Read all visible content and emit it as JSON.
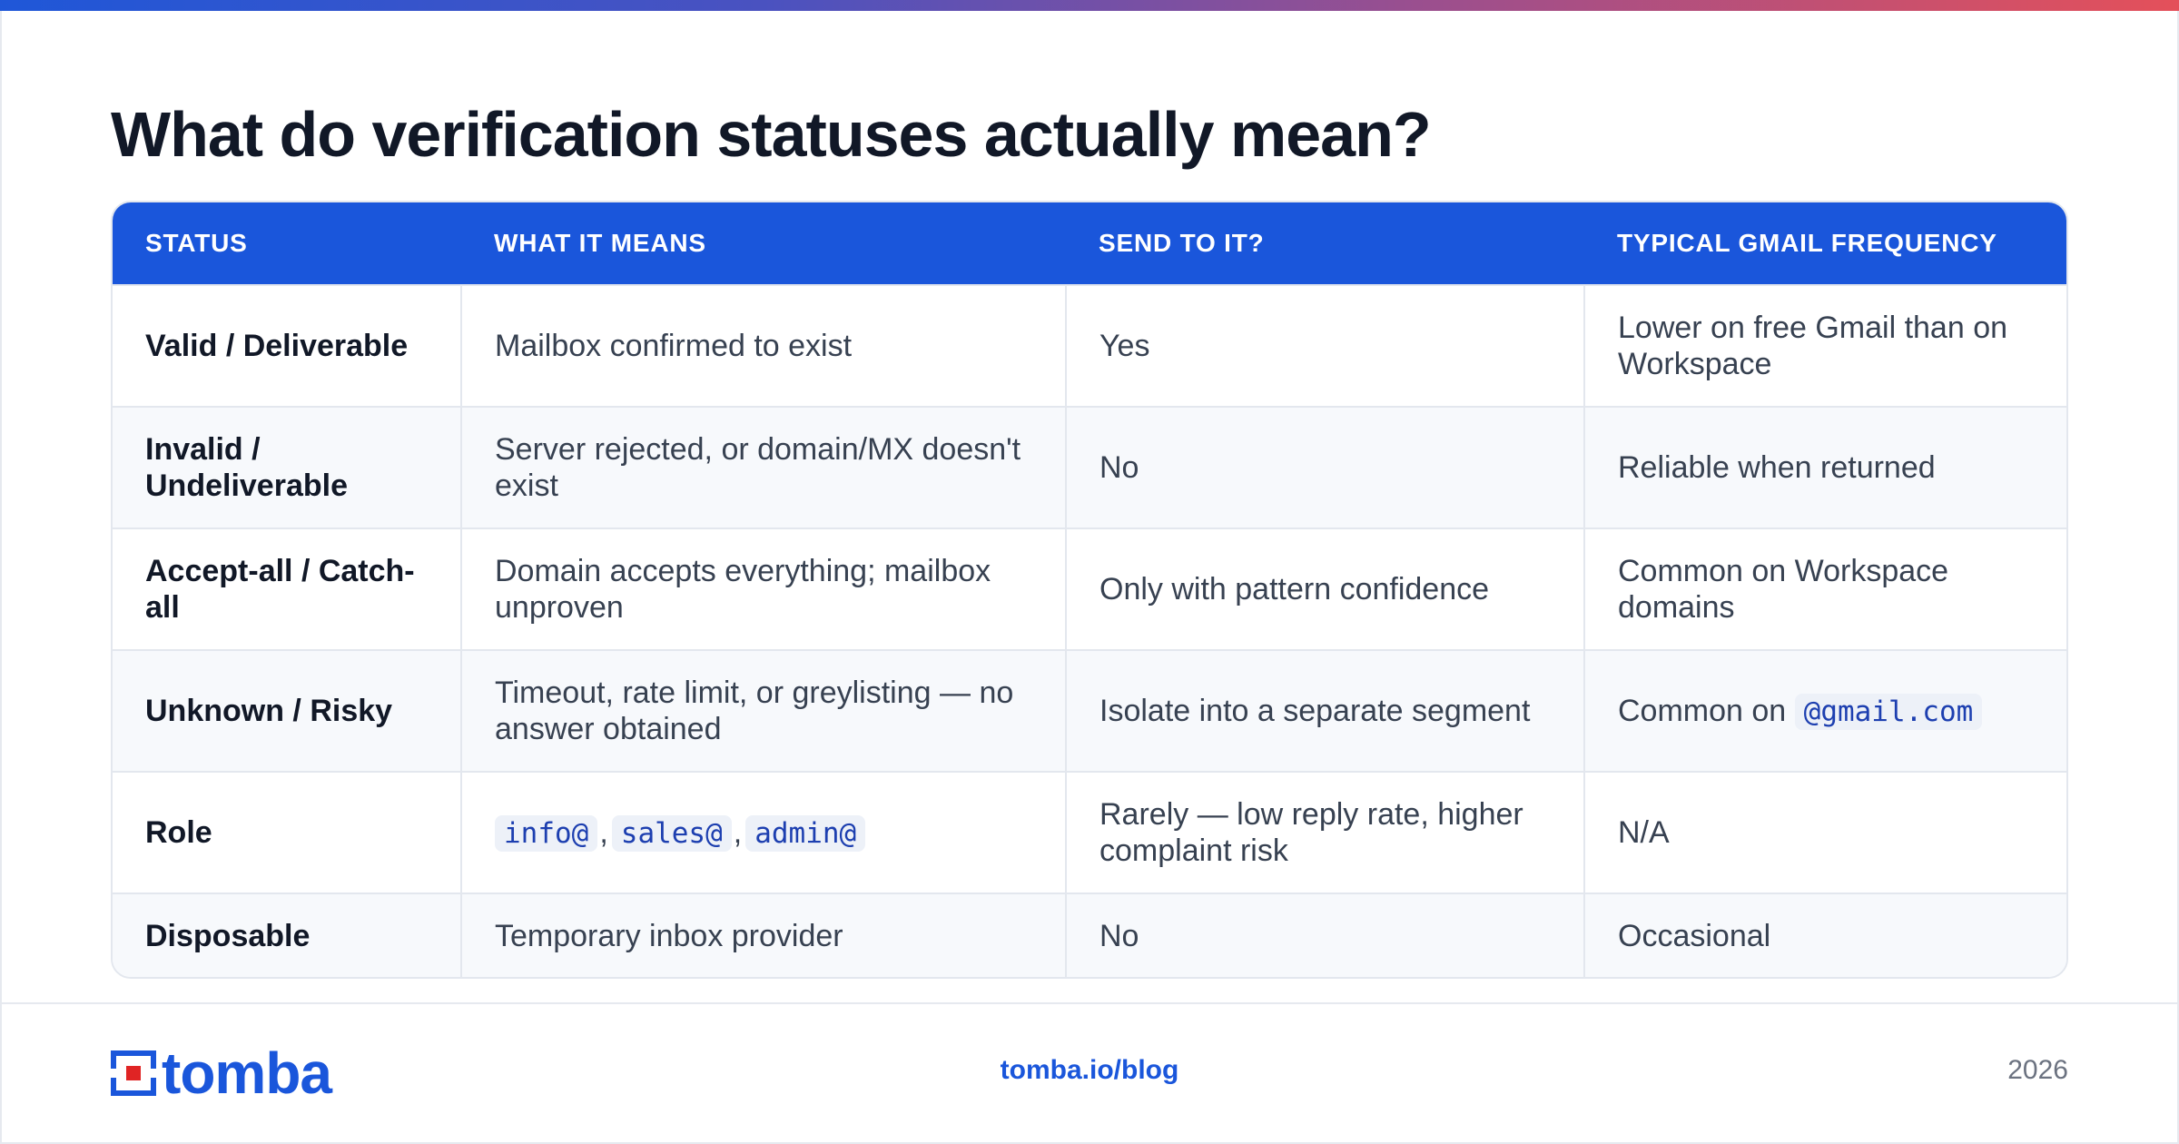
{
  "title": "What do verification statuses actually mean?",
  "table": {
    "headers": [
      "STATUS",
      "WHAT IT MEANS",
      "SEND TO IT?",
      "TYPICAL GMAIL FREQUENCY"
    ],
    "rows": [
      {
        "status": "Valid / Deliverable",
        "meaning": "Mailbox confirmed to exist",
        "send": "Yes",
        "frequency": "Lower on free Gmail than on Workspace"
      },
      {
        "status": "Invalid / Undeliverable",
        "meaning": "Server rejected, or domain/MX doesn't exist",
        "send": "No",
        "frequency": "Reliable when returned"
      },
      {
        "status": "Accept-all / Catch-all",
        "meaning": "Domain accepts everything; mailbox unproven",
        "send": "Only with pattern confidence",
        "frequency": "Common on Workspace domains"
      },
      {
        "status": "Unknown / Risky",
        "meaning": "Timeout, rate limit, or greylisting — no answer obtained",
        "send": "Isolate into a separate segment",
        "frequency_prefix": "Common on",
        "frequency_code": "@gmail.com"
      },
      {
        "status": "Role",
        "meaning_codes": [
          "info@",
          "sales@",
          "admin@"
        ],
        "meaning_sep": ",",
        "send": "Rarely — low reply rate, higher complaint risk",
        "frequency": "N/A"
      },
      {
        "status": "Disposable",
        "meaning": "Temporary inbox provider",
        "send": "No",
        "frequency": "Occasional"
      }
    ]
  },
  "footer": {
    "logo_text": "tomba",
    "link": "tomba.io/blog",
    "year": "2026"
  },
  "colors": {
    "accent": "#1a56db",
    "gradient": [
      "#1f57d8",
      "#9a4f8f",
      "#e4505a"
    ]
  }
}
